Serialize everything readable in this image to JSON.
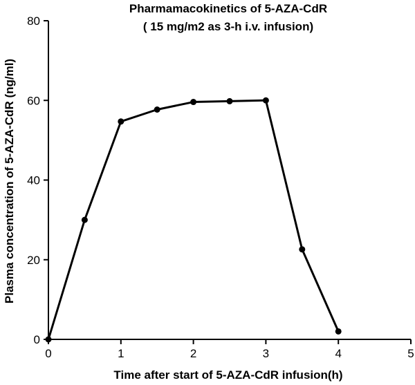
{
  "chart_data": {
    "type": "line",
    "title": "Pharmamacokinetics of 5-AZA-CdR",
    "subtitle": "( 15 mg/m2 as 3-h i.v. infusion)",
    "xlabel": "Time after start of 5-AZA-CdR infusion(h)",
    "ylabel": "Plasma concentration of 5-AZA-CdR (ng/ml)",
    "xlim": [
      0,
      5
    ],
    "ylim": [
      0,
      80
    ],
    "x_ticks": [
      "0",
      "1",
      "2",
      "3",
      "4",
      "5"
    ],
    "y_ticks": [
      "0",
      "20",
      "40",
      "60",
      "80"
    ],
    "grid": false,
    "series": [
      {
        "x": [
          0,
          0.5,
          1,
          1.5,
          2,
          2.5,
          3,
          3.5,
          4
        ],
        "y": [
          0,
          30,
          54.7,
          57.7,
          59.6,
          59.8,
          60,
          22.6,
          2
        ]
      }
    ],
    "line_color": "#000000"
  }
}
